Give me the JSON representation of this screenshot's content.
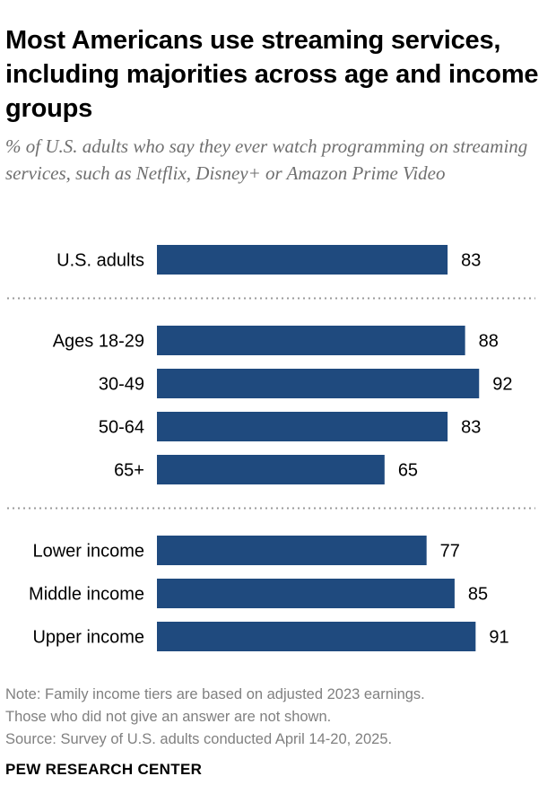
{
  "header": {
    "title": "Most Americans use streaming services, including majorities across age and income groups",
    "subtitle": "% of U.S. adults who say they ever watch programming on streaming services, such as Netflix, Disney+ or Amazon Prime Video"
  },
  "chart_data": {
    "type": "bar",
    "orientation": "horizontal",
    "title": "Most Americans use streaming services, including majorities across age and income groups",
    "xlabel": "",
    "ylabel": "",
    "xlim": [
      0,
      100
    ],
    "bar_color": "#1f4a7e",
    "groups": [
      {
        "name": "total",
        "categories": [
          "U.S. adults"
        ],
        "values": [
          83
        ]
      },
      {
        "name": "age",
        "categories": [
          "Ages 18-29",
          "30-49",
          "50-64",
          "65+"
        ],
        "values": [
          88,
          92,
          83,
          65
        ]
      },
      {
        "name": "income",
        "categories": [
          "Lower income",
          "Middle income",
          "Upper income"
        ],
        "values": [
          77,
          85,
          91
        ]
      }
    ]
  },
  "footer": {
    "note_line1": "Note: Family income tiers are based on adjusted 2023 earnings.",
    "note_line2": "Those who did not give an answer are not shown.",
    "source": "Source: Survey of U.S. adults conducted April 14-20, 2025.",
    "brand": "PEW RESEARCH CENTER"
  }
}
